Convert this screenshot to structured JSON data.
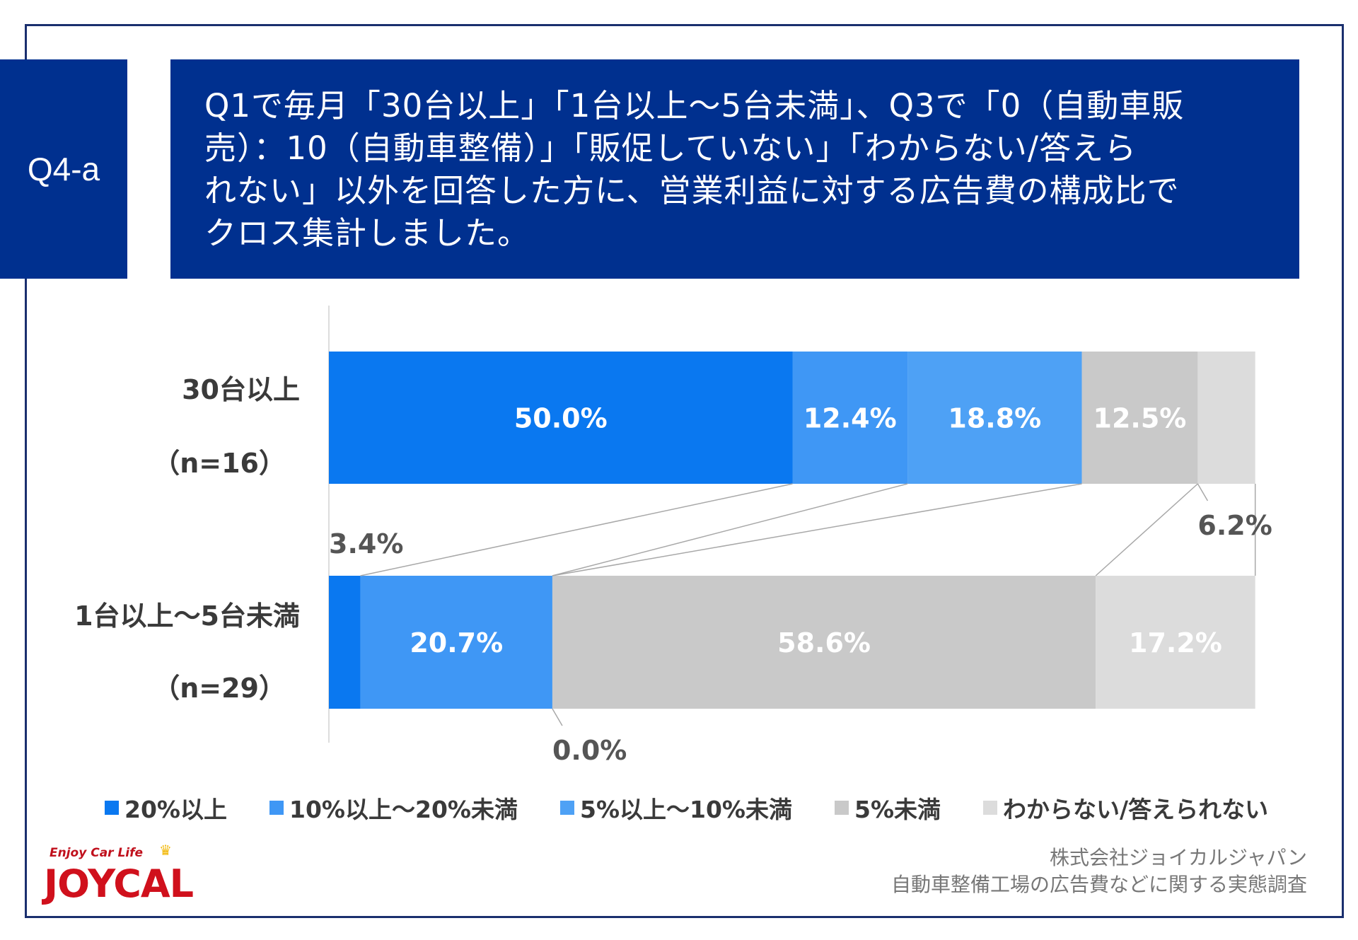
{
  "question_tag": "Q4-a",
  "question_lines": [
    "Q1で毎月「30台以上」「1台以上～5台未満」、Q3で「0（自動車販",
    "売）：10（自動車整備）」「販促していない」「わからない/答えら",
    "れない」以外を回答した方に、営業利益に対する広告費の構成比で",
    "クロス集計しました。"
  ],
  "chart_data": {
    "type": "bar",
    "orientation": "horizontal",
    "stacked": "percent",
    "categories": [
      {
        "label": "30台以上",
        "n_label": "（n=16）"
      },
      {
        "label": "1台以上～5台未満",
        "n_label": "（n=29）"
      }
    ],
    "series": [
      {
        "name": "20%以上",
        "color": "#0a78f0",
        "values": [
          50.0,
          3.4
        ],
        "labels": [
          "50.0%",
          "3.4%"
        ]
      },
      {
        "name": "10%以上～20%未満",
        "color": "#3f97f5",
        "values": [
          12.4,
          20.7
        ],
        "labels": [
          "12.4%",
          "20.7%"
        ]
      },
      {
        "name": "5%以上～10%未満",
        "color": "#4ea1f5",
        "values": [
          18.8,
          0.0
        ],
        "labels": [
          "18.8%",
          "0.0%"
        ]
      },
      {
        "name": "5%未満",
        "color": "#c9c9c9",
        "values": [
          12.5,
          58.6
        ],
        "labels": [
          "12.5%",
          "58.6%"
        ]
      },
      {
        "name": "わからない/答えられない",
        "color": "#dcdcdc",
        "values": [
          6.2,
          17.2
        ],
        "labels": [
          "6.2%",
          "17.2%"
        ]
      }
    ],
    "xlim": [
      0,
      100
    ],
    "series_lines": true,
    "grid": false,
    "legend_position": "bottom"
  },
  "logo": {
    "tagline": "Enjoy Car Life",
    "name": "JOYCAL"
  },
  "credit": {
    "company": "株式会社ジョイカルジャパン",
    "survey": "自動車整備工場の広告費などに関する実態調査"
  }
}
